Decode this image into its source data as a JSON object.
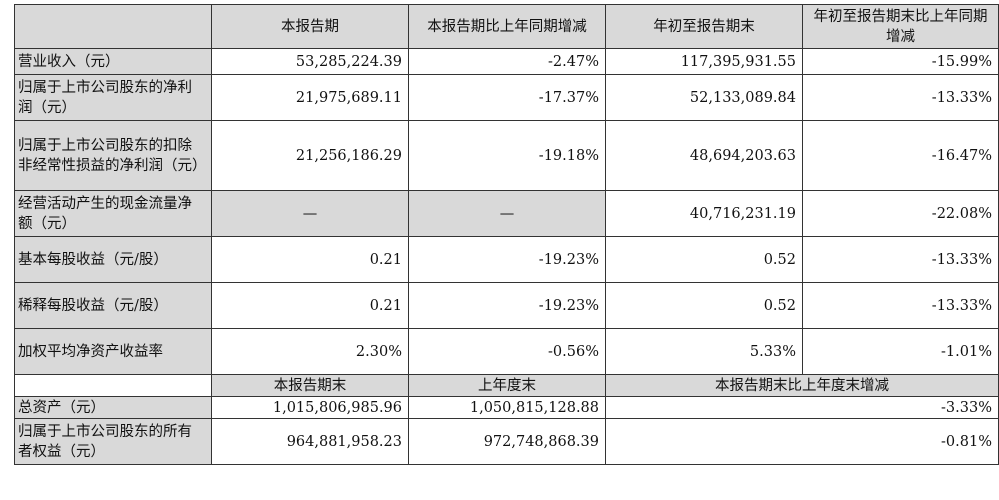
{
  "header": {
    "blank": "",
    "col1": "本报告期",
    "col2": "本报告期比上年同期增减",
    "col3": "年初至报告期末",
    "col4": "年初至报告期末比上年同期增减"
  },
  "rows": [
    {
      "label": "营业收入（元）",
      "v1": "53,285,224.39",
      "v2": "-2.47%",
      "v3": "117,395,931.55",
      "v4": "-15.99%"
    },
    {
      "label": "归属于上市公司股东的净利润（元）",
      "v1": "21,975,689.11",
      "v2": "-17.37%",
      "v3": "52,133,089.84",
      "v4": "-13.33%"
    },
    {
      "label": "归属于上市公司股东的扣除非经常性损益的净利润（元）",
      "v1": "21,256,186.29",
      "v2": "-19.18%",
      "v3": "48,694,203.63",
      "v4": "-16.47%"
    },
    {
      "label": "经营活动产生的现金流量净额（元）",
      "v1": "—",
      "v2": "—",
      "v3": "40,716,231.19",
      "v4": "-22.08%"
    },
    {
      "label": "基本每股收益（元/股）",
      "v1": "0.21",
      "v2": "-19.23%",
      "v3": "0.52",
      "v4": "-13.33%"
    },
    {
      "label": "稀释每股收益（元/股）",
      "v1": "0.21",
      "v2": "-19.23%",
      "v3": "0.52",
      "v4": "-13.33%"
    },
    {
      "label": "加权平均净资产收益率",
      "v1": "2.30%",
      "v2": "-0.56%",
      "v3": "5.33%",
      "v4": "-1.01%"
    }
  ],
  "header2": {
    "col1": "本报告期末",
    "col2": "上年度末",
    "col3": "本报告期末比上年度末增减"
  },
  "rows2": [
    {
      "label": "总资产（元）",
      "v1": "1,015,806,985.96",
      "v2": "1,050,815,128.88",
      "v3": "-3.33%"
    },
    {
      "label": "归属于上市公司股东的所有者权益（元）",
      "v1": "964,881,958.23",
      "v2": "972,748,868.39",
      "v3": "-0.81%"
    }
  ]
}
